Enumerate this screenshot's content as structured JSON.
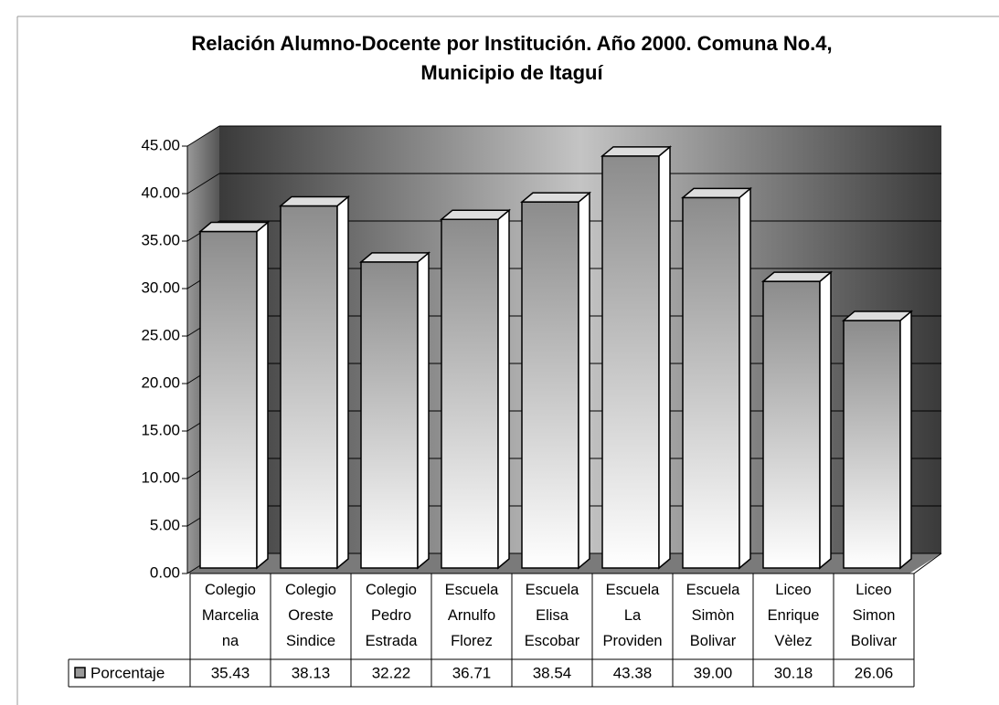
{
  "chart_data": {
    "type": "bar",
    "title": "Relación Alumno-Docente por Institución. Año 2000. Comuna No.4,\nMunicipio de Itaguí",
    "categories": [
      "Colegio\nMarcelia\nna",
      "Colegio\nOreste\nSindice",
      "Colegio\nPedro\nEstrada",
      "Escuela\nArnulfo\nFlorez",
      "Escuela\nElisa\nEscobar",
      "Escuela\nLa\nProviden",
      "Escuela\nSimòn\nBolivar",
      "Liceo\nEnrique\nVèlez",
      "Liceo\nSimon\nBolivar"
    ],
    "series": [
      {
        "name": "Porcentaje",
        "color": "#8c8c8c",
        "values": [
          35.43,
          38.13,
          32.22,
          36.71,
          38.54,
          43.38,
          39.0,
          30.18,
          26.06
        ],
        "value_labels": [
          "35.43",
          "38.13",
          "32.22",
          "36.71",
          "38.54",
          "43.38",
          "39.00",
          "30.18",
          "26.06"
        ]
      }
    ],
    "ylim": [
      0,
      45
    ],
    "yticks": [
      {
        "value": 0,
        "label": "0.00"
      },
      {
        "value": 5,
        "label": "5.00"
      },
      {
        "value": 10,
        "label": "10.00"
      },
      {
        "value": 15,
        "label": "15.00"
      },
      {
        "value": 20,
        "label": "20.00"
      },
      {
        "value": 25,
        "label": "25.00"
      },
      {
        "value": 30,
        "label": "30.00"
      },
      {
        "value": 35,
        "label": "35.00"
      },
      {
        "value": 40,
        "label": "40.00"
      },
      {
        "value": 45,
        "label": "45.00"
      }
    ],
    "grid": true
  }
}
